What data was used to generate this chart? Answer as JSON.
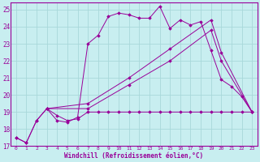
{
  "bg_color": "#c8eef0",
  "grid_color": "#a8d8da",
  "line_color": "#990099",
  "xlabel": "Windchill (Refroidissement éolien,°C)",
  "xlim": [
    -0.5,
    23.5
  ],
  "ylim": [
    17,
    25.4
  ],
  "yticks": [
    17,
    18,
    19,
    20,
    21,
    22,
    23,
    24,
    25
  ],
  "xticks": [
    0,
    1,
    2,
    3,
    4,
    5,
    6,
    7,
    8,
    9,
    10,
    11,
    12,
    13,
    14,
    15,
    16,
    17,
    18,
    19,
    20,
    21,
    22,
    23
  ],
  "line1_x": [
    0,
    1,
    2,
    3,
    4,
    5,
    6,
    7,
    8,
    9,
    10,
    11,
    12,
    13,
    14,
    15,
    16,
    17,
    18,
    19,
    20,
    21,
    22,
    23
  ],
  "line1_y": [
    17.5,
    17.2,
    18.5,
    19.2,
    18.8,
    18.5,
    18.6,
    19.0,
    19.0,
    19.0,
    19.0,
    19.0,
    19.0,
    19.0,
    19.0,
    19.0,
    19.0,
    19.0,
    19.0,
    19.0,
    19.0,
    19.0,
    19.0,
    19.0
  ],
  "line2_x": [
    0,
    1,
    2,
    3,
    4,
    5,
    6,
    7,
    8,
    9,
    10,
    11,
    12,
    13,
    14,
    15,
    16,
    17,
    18,
    19,
    20,
    21,
    22,
    23
  ],
  "line2_y": [
    17.5,
    17.2,
    18.5,
    19.2,
    18.5,
    18.4,
    18.7,
    23.0,
    23.5,
    24.6,
    24.8,
    24.7,
    24.5,
    24.5,
    25.2,
    23.9,
    24.4,
    24.1,
    24.3,
    22.6,
    20.9,
    20.5,
    19.9,
    19.0
  ],
  "line3_x": [
    3,
    7,
    11,
    15,
    19,
    20,
    23
  ],
  "line3_y": [
    19.2,
    19.5,
    21.0,
    22.7,
    24.4,
    22.5,
    19.0
  ],
  "line4_x": [
    3,
    7,
    11,
    15,
    19,
    20,
    23
  ],
  "line4_y": [
    19.2,
    19.2,
    20.6,
    22.0,
    23.8,
    22.0,
    19.0
  ]
}
